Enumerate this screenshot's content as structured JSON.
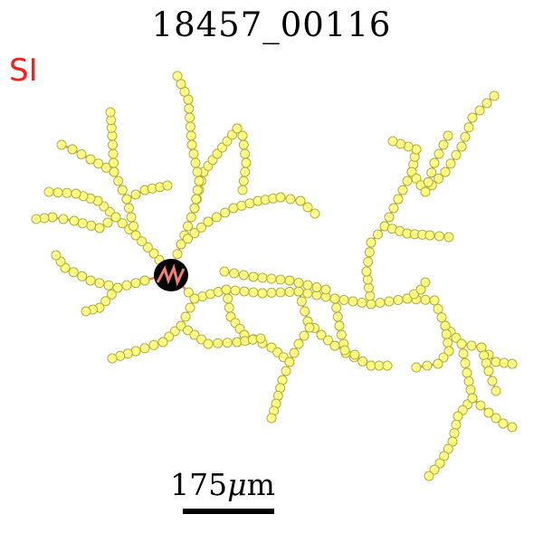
{
  "figure": {
    "title": "18457_00116",
    "region_label": "SI",
    "scale_bar": {
      "value": "175",
      "unit_symbol": "μ",
      "unit_suffix": "m"
    }
  },
  "colors": {
    "branch": "#f08070",
    "node_fill": "#ffff80",
    "node_stroke": "#b0b040",
    "soma": "#000000",
    "region_label": "#ff1a1a",
    "title": "#000000"
  }
}
